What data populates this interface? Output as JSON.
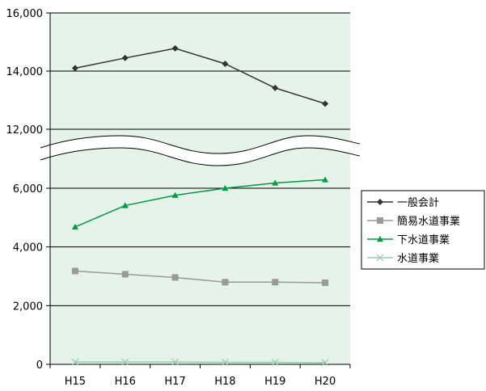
{
  "chart_data": {
    "type": "line",
    "categories": [
      "H15",
      "H16",
      "H17",
      "H18",
      "H19",
      "H20"
    ],
    "y_ticks": [
      "0",
      "2,000",
      "4,000",
      "6,000",
      "12,000",
      "14,000",
      "16,000"
    ],
    "axis_break": {
      "from": 7000,
      "to": 11000
    },
    "ylim": [
      0,
      16000
    ],
    "grid": true,
    "legend_position": "right",
    "background_color": "#e5f3ea",
    "series": [
      {
        "name": "一般会計",
        "values": [
          14100,
          14450,
          14780,
          14250,
          13420,
          12880
        ],
        "color": "#333333",
        "marker": "diamond"
      },
      {
        "name": "簡易水道事業",
        "values": [
          3180,
          3070,
          2960,
          2800,
          2800,
          2780
        ],
        "color": "#999999",
        "marker": "square"
      },
      {
        "name": "下水道事業",
        "values": [
          4680,
          5410,
          5760,
          6000,
          6180,
          6290
        ],
        "color": "#009944",
        "marker": "triangle"
      },
      {
        "name": "水道事業",
        "values": [
          80,
          80,
          80,
          70,
          70,
          60
        ],
        "color": "#99ccaa",
        "marker": "x"
      }
    ]
  }
}
